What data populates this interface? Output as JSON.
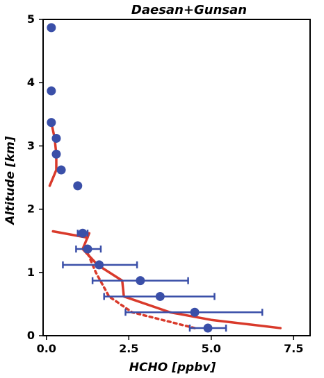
{
  "chart_data": {
    "type": "scatter",
    "title": "Daesan+Gunsan",
    "xlabel": "HCHO [ppbv]",
    "ylabel": "Altitude [km]",
    "xlim": [
      -0.1,
      8.0
    ],
    "ylim": [
      0,
      5
    ],
    "xticks": [
      0.0,
      2.5,
      5.0,
      7.5
    ],
    "xtick_labels": [
      "0.0",
      "2.5",
      "5.0",
      "7.5"
    ],
    "yticks": [
      0,
      1,
      2,
      3,
      4,
      5
    ],
    "ytick_labels": [
      "0",
      "1",
      "2",
      "3",
      "4",
      "5"
    ],
    "grid": false,
    "colors": {
      "points": "#3a4fa8",
      "model": "#d93a2b"
    },
    "series": [
      {
        "type": "scatter-errorbar",
        "x": [
          4.9,
          4.5,
          3.45,
          2.85,
          1.6,
          1.25,
          1.1,
          0.95,
          0.45,
          0.3,
          0.3,
          0.15,
          0.15,
          0.15
        ],
        "y": [
          0.12,
          0.37,
          0.62,
          0.87,
          1.12,
          1.37,
          1.62,
          2.37,
          2.62,
          2.87,
          3.12,
          3.37,
          3.87,
          4.87
        ],
        "xerr_low": [
          4.35,
          2.4,
          1.75,
          1.4,
          0.5,
          0.9,
          0.95,
          null,
          null,
          null,
          null,
          null,
          null,
          null
        ],
        "xerr_high": [
          5.45,
          6.55,
          5.1,
          4.3,
          2.75,
          1.65,
          1.25,
          null,
          null,
          null,
          null,
          null,
          null,
          null
        ]
      },
      {
        "type": "line",
        "style": "solid",
        "x": [
          7.1,
          5.0,
          3.75,
          2.35,
          2.3,
          1.55,
          1.1,
          1.3,
          1.1,
          1.25,
          0.2
        ],
        "y": [
          0.12,
          0.25,
          0.37,
          0.62,
          0.87,
          1.12,
          1.37,
          1.62,
          1.62,
          1.55,
          1.65
        ]
      },
      {
        "type": "line",
        "style": "solid",
        "x": [
          0.1,
          0.3,
          0.3,
          0.25,
          0.15
        ],
        "y": [
          2.37,
          2.62,
          2.87,
          3.12,
          3.37
        ]
      },
      {
        "type": "line",
        "style": "dotted",
        "x": [
          4.5,
          2.6,
          1.9,
          1.5,
          1.2
        ],
        "y": [
          0.12,
          0.37,
          0.62,
          1.0,
          1.37
        ]
      }
    ]
  }
}
